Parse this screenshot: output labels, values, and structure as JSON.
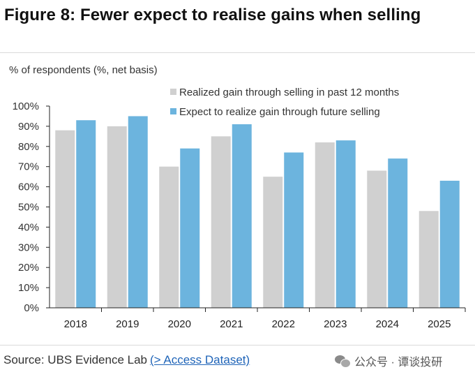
{
  "title": "Figure 8: Fewer expect to realise gains when selling",
  "footer": {
    "source_text": "Source: UBS Evidence Lab",
    "link_text": "(> Access Dataset)"
  },
  "watermark": {
    "text": "公众号 · 谭谈投研",
    "icon": "wechat-icon"
  },
  "colors": {
    "realized": "#d0d0d0",
    "expect": "#6cb4de",
    "link": "#1f64b8"
  },
  "chart_data": {
    "type": "bar",
    "title": "Figure 8: Fewer expect to realise gains when selling",
    "ylabel": "% of respondents (%, net basis)",
    "xlabel": "",
    "categories": [
      "2018",
      "2019",
      "2020",
      "2021",
      "2022",
      "2023",
      "2024",
      "2025"
    ],
    "series": [
      {
        "name": "Realized gain through selling in past 12 months",
        "values": [
          88,
          90,
          70,
          85,
          65,
          82,
          68,
          48
        ]
      },
      {
        "name": "Expect to realize gain through future selling",
        "values": [
          93,
          95,
          79,
          91,
          77,
          83,
          74,
          63
        ]
      }
    ],
    "ylim": [
      0,
      100
    ],
    "yticks": [
      "0%",
      "10%",
      "20%",
      "30%",
      "40%",
      "50%",
      "60%",
      "70%",
      "80%",
      "90%",
      "100%"
    ],
    "grid": false,
    "legend": "top-center"
  }
}
